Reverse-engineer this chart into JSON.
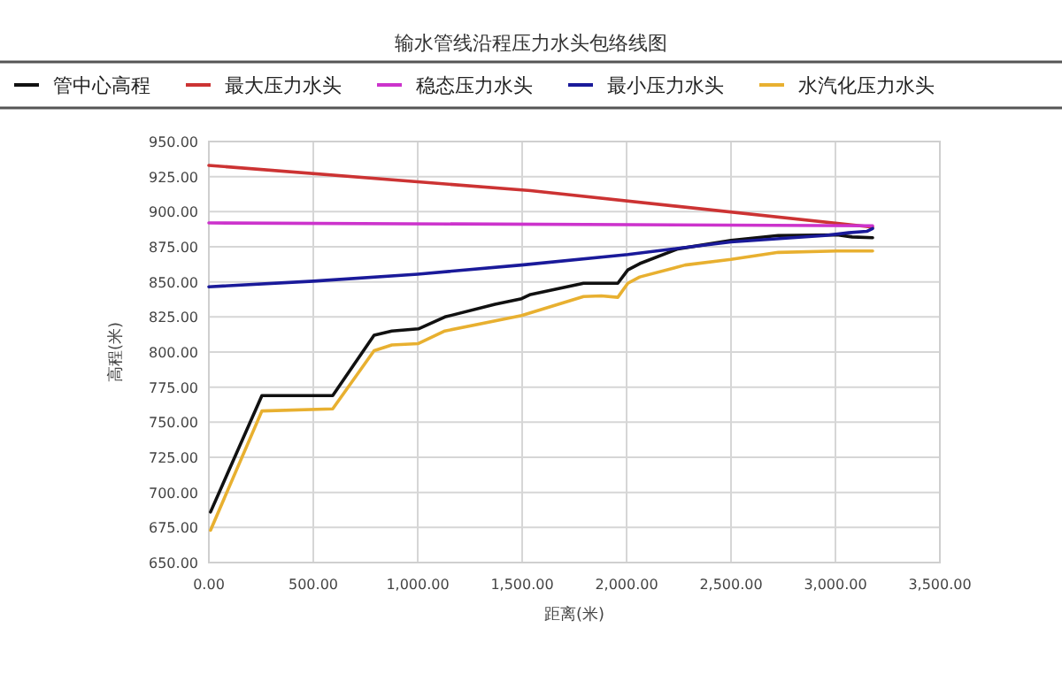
{
  "chart_data": {
    "type": "line",
    "title": "输水管线沿程压力水头包络线图",
    "xlabel": "距离(米)",
    "ylabel": "高程(米)",
    "xlim": [
      0,
      3500
    ],
    "ylim": [
      650,
      950
    ],
    "xticks": [
      {
        "value": 0,
        "label": "0.00"
      },
      {
        "value": 500,
        "label": "500.00"
      },
      {
        "value": 1000,
        "label": "1,000.00"
      },
      {
        "value": 1500,
        "label": "1,500.00"
      },
      {
        "value": 2000,
        "label": "2,000.00"
      },
      {
        "value": 2500,
        "label": "2,500.00"
      },
      {
        "value": 3000,
        "label": "3,000.00"
      },
      {
        "value": 3500,
        "label": "3,500.00"
      }
    ],
    "yticks": [
      {
        "value": 650,
        "label": "650.00"
      },
      {
        "value": 675,
        "label": "675.00"
      },
      {
        "value": 700,
        "label": "700.00"
      },
      {
        "value": 725,
        "label": "725.00"
      },
      {
        "value": 750,
        "label": "750.00"
      },
      {
        "value": 775,
        "label": "775.00"
      },
      {
        "value": 800,
        "label": "800.00"
      },
      {
        "value": 825,
        "label": "825.00"
      },
      {
        "value": 850,
        "label": "850.00"
      },
      {
        "value": 875,
        "label": "875.00"
      },
      {
        "value": 900,
        "label": "900.00"
      },
      {
        "value": 925,
        "label": "925.00"
      },
      {
        "value": 950,
        "label": "950.00"
      }
    ],
    "grid": true,
    "legend": "top",
    "marker": "none",
    "series": [
      {
        "name": "管中心高程",
        "color": "#111111",
        "x": [
          8,
          254,
          593,
          791,
          876,
          1003,
          1130,
          1370,
          1497,
          1540,
          1794,
          1879,
          1958,
          2006,
          2063,
          2246,
          2500,
          2726,
          3008,
          3080,
          3178
        ],
        "values": [
          686,
          769,
          769,
          812,
          815,
          816.5,
          825,
          834,
          838,
          841,
          849,
          849,
          849,
          858.5,
          863,
          873.5,
          879.5,
          883,
          883.5,
          882,
          881.5
        ]
      },
      {
        "name": "最大压力水头",
        "color": "#cc3333",
        "x": [
          0,
          1540,
          3178
        ],
        "values": [
          933,
          915,
          889
        ]
      },
      {
        "name": "稳态压力水头",
        "color": "#cc33cc",
        "x": [
          0,
          3178
        ],
        "values": [
          892,
          890
        ]
      },
      {
        "name": "最小压力水头",
        "color": "#1a1a9a",
        "x": [
          0,
          500,
          1000,
          1497,
          2006,
          2500,
          2950,
          3063,
          3150,
          3178
        ],
        "values": [
          846.5,
          850.5,
          855.5,
          862,
          869.5,
          878.5,
          883,
          885,
          886,
          888
        ]
      },
      {
        "name": "水汽化压力水头",
        "color": "#e8b030",
        "x": [
          8,
          254,
          593,
          791,
          876,
          1003,
          1130,
          1497,
          1794,
          1879,
          1958,
          2006,
          2063,
          2280,
          2500,
          2726,
          3008,
          3178
        ],
        "values": [
          673,
          758,
          759.5,
          801,
          805,
          806,
          815,
          826,
          839.5,
          840,
          839,
          849,
          853.5,
          862,
          866,
          871,
          872,
          872
        ]
      }
    ]
  }
}
